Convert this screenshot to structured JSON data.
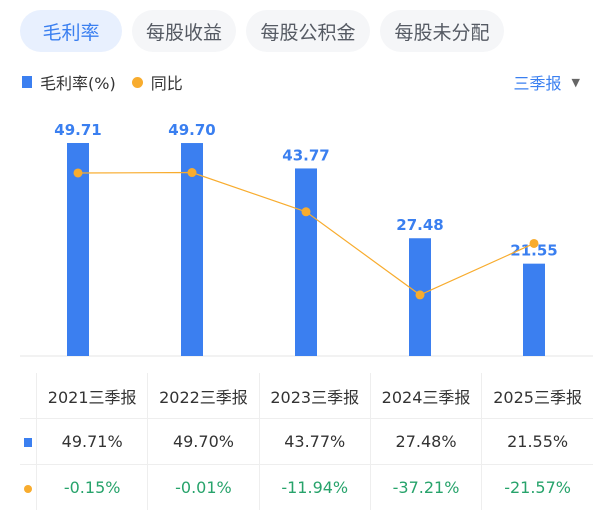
{
  "tabs": [
    "毛利率",
    "每股收益",
    "每股公积金",
    "每股未分配"
  ],
  "legend": {
    "bar": "毛利率(%)",
    "line": "同比"
  },
  "period": "三季报",
  "colors": {
    "bar": "#3b7ff0",
    "line": "#f8ac2e",
    "negative": "#27a36b"
  },
  "chart_data": {
    "type": "bar",
    "categories": [
      "2021三季报",
      "2022三季报",
      "2023三季报",
      "2024三季报",
      "2025三季报"
    ],
    "series": [
      {
        "name": "毛利率(%)",
        "type": "bar",
        "values": [
          49.71,
          49.7,
          43.77,
          27.48,
          21.55
        ],
        "labels": [
          "49.71",
          "49.70",
          "43.77",
          "27.48",
          "21.55"
        ]
      },
      {
        "name": "同比",
        "type": "line",
        "values": [
          -0.15,
          -0.01,
          -11.94,
          -37.21,
          -21.57
        ]
      }
    ],
    "legend_position": "top-left"
  },
  "table": {
    "headers": [
      "2021三季报",
      "2022三季报",
      "2023三季报",
      "2024三季报",
      "2025三季报"
    ],
    "margin_row": [
      "49.71%",
      "49.70%",
      "43.77%",
      "27.48%",
      "21.55%"
    ],
    "yoy_row": [
      "-0.15%",
      "-0.01%",
      "-11.94%",
      "-37.21%",
      "-21.57%"
    ]
  }
}
